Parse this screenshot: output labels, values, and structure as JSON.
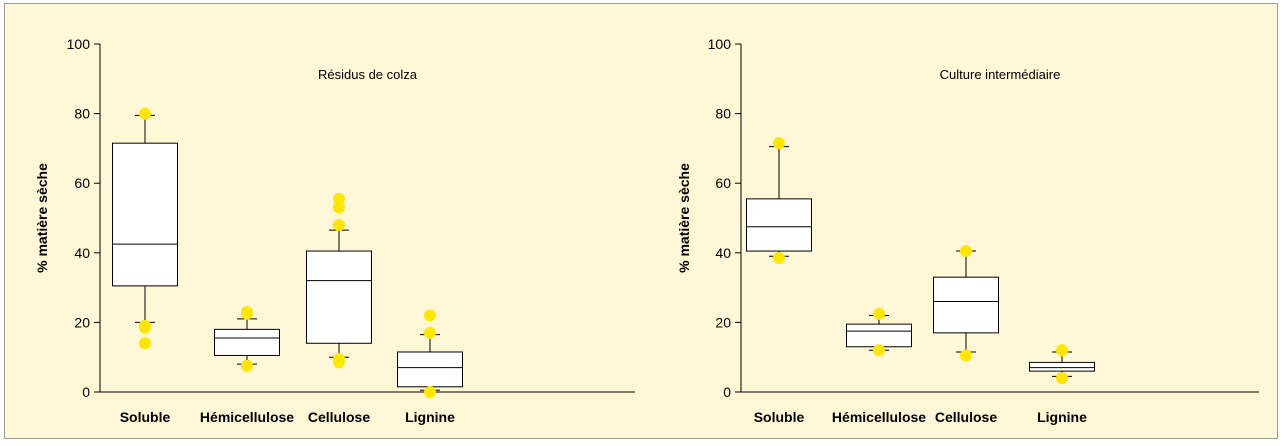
{
  "chart_data": [
    {
      "type": "box",
      "title": "Résidus de colza",
      "ylabel": "% matière sèche",
      "ylim": [
        0,
        100
      ],
      "yticks": [
        0,
        20,
        40,
        60,
        80,
        100
      ],
      "categories": [
        "Soluble",
        "Hémicellulose",
        "Cellulose",
        "Lignine"
      ],
      "boxes": [
        {
          "q1": 30.5,
          "median": 42.5,
          "q3": 71.5,
          "whisker_low": 20,
          "whisker_high": 79.5,
          "outliers": [
            80,
            19,
            18.5,
            14
          ]
        },
        {
          "q1": 10.5,
          "median": 15.5,
          "q3": 18,
          "whisker_low": 8,
          "whisker_high": 21,
          "outliers": [
            23,
            22.5,
            7.5
          ]
        },
        {
          "q1": 14,
          "median": 32,
          "q3": 40.5,
          "whisker_low": 10,
          "whisker_high": 46.5,
          "outliers": [
            55.5,
            53,
            48,
            9.5,
            8.5
          ]
        },
        {
          "q1": 1.5,
          "median": 7,
          "q3": 11.5,
          "whisker_low": 0.5,
          "whisker_high": 16.5,
          "outliers": [
            22,
            17,
            0
          ]
        }
      ],
      "outlier_color": "#ffe600",
      "background": "#fff7d6",
      "grid": false
    },
    {
      "type": "box",
      "title": "Culture intermédiaire",
      "ylabel": "% matière sèche",
      "ylim": [
        0,
        100
      ],
      "yticks": [
        0,
        20,
        40,
        60,
        80,
        100
      ],
      "categories": [
        "Soluble",
        "Hémicellulose",
        "Cellulose",
        "Lignine"
      ],
      "boxes": [
        {
          "q1": 40.5,
          "median": 47.5,
          "q3": 55.5,
          "whisker_low": 39,
          "whisker_high": 70.5,
          "outliers": [
            71.5,
            38.5
          ]
        },
        {
          "q1": 13,
          "median": 17.5,
          "q3": 19.5,
          "whisker_low": 12,
          "whisker_high": 22,
          "outliers": [
            22.5,
            12
          ]
        },
        {
          "q1": 17,
          "median": 26,
          "q3": 33,
          "whisker_low": 11.5,
          "whisker_high": 40.5,
          "outliers": [
            40.5,
            10.5
          ]
        },
        {
          "q1": 6,
          "median": 7,
          "q3": 8.5,
          "whisker_low": 4.5,
          "whisker_high": 11.5,
          "outliers": [
            12,
            4
          ]
        }
      ],
      "outlier_color": "#ffe600",
      "background": "#fff7d6",
      "grid": false
    }
  ]
}
